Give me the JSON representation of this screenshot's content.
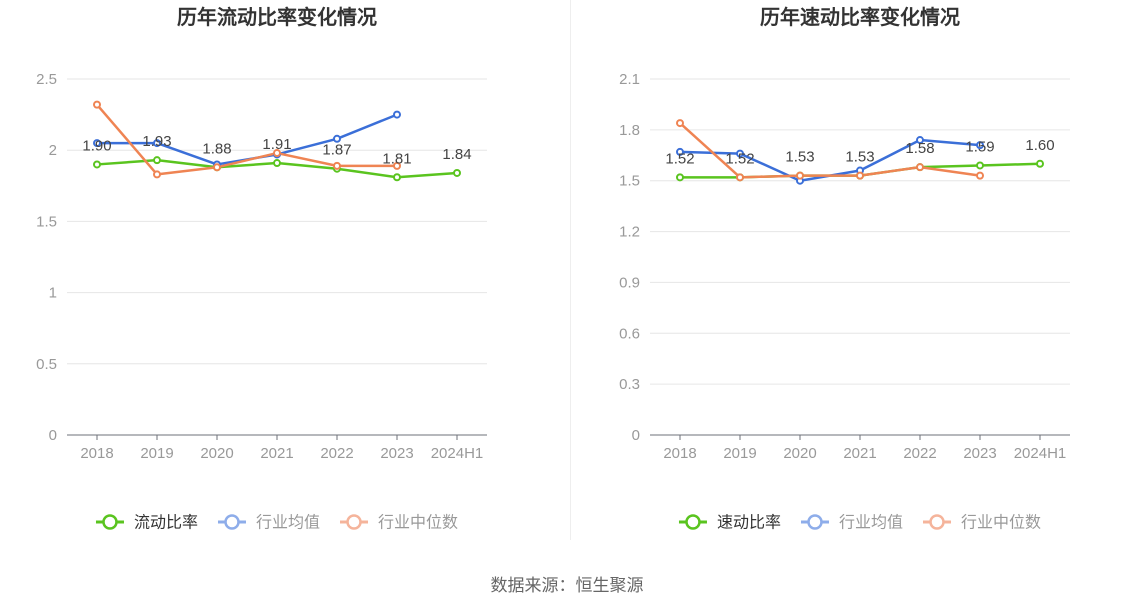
{
  "footer": {
    "source": "数据来源：恒生聚源"
  },
  "chart_data": [
    {
      "type": "line",
      "title": "历年流动比率变化情况",
      "categories": [
        "2018",
        "2019",
        "2020",
        "2021",
        "2022",
        "2023",
        "2024H1"
      ],
      "ylim": [
        0,
        2.5
      ],
      "yticks": [
        "0",
        "0.5",
        "1",
        "1.5",
        "2",
        "2.5"
      ],
      "grid": true,
      "legend": "bottom",
      "series": [
        {
          "name": "流动比率",
          "color": "#5ac41f",
          "legend_color": "#5ac41f",
          "values": [
            1.9,
            1.93,
            1.88,
            1.91,
            1.87,
            1.81,
            1.84
          ],
          "data_labels": [
            "1.90",
            "1.93",
            "1.88",
            "1.91",
            "1.87",
            "1.81",
            "1.84"
          ]
        },
        {
          "name": "行业均值",
          "color": "#3b6fd8",
          "legend_color": "#8eadea",
          "values": [
            2.05,
            2.05,
            1.9,
            1.97,
            2.08,
            2.25,
            null
          ]
        },
        {
          "name": "行业中位数",
          "color": "#ef8453",
          "legend_color": "#f5b49b",
          "values": [
            2.32,
            1.83,
            1.88,
            1.98,
            1.89,
            1.89,
            null
          ]
        }
      ]
    },
    {
      "type": "line",
      "title": "历年速动比率变化情况",
      "categories": [
        "2018",
        "2019",
        "2020",
        "2021",
        "2022",
        "2023",
        "2024H1"
      ],
      "ylim": [
        0,
        2.1
      ],
      "yticks": [
        "0",
        "0.3",
        "0.6",
        "0.9",
        "1.2",
        "1.5",
        "1.8",
        "2.1"
      ],
      "grid": true,
      "legend": "bottom",
      "series": [
        {
          "name": "速动比率",
          "color": "#5ac41f",
          "legend_color": "#5ac41f",
          "values": [
            1.52,
            1.52,
            1.53,
            1.53,
            1.58,
            1.59,
            1.6
          ],
          "data_labels": [
            "1.52",
            "1.52",
            "1.53",
            "1.53",
            "1.58",
            "1.59",
            "1.60"
          ]
        },
        {
          "name": "行业均值",
          "color": "#3b6fd8",
          "legend_color": "#8eadea",
          "values": [
            1.67,
            1.66,
            1.5,
            1.56,
            1.74,
            1.71,
            null
          ]
        },
        {
          "name": "行业中位数",
          "color": "#ef8453",
          "legend_color": "#f5b49b",
          "values": [
            1.84,
            1.52,
            1.53,
            1.53,
            1.58,
            1.53,
            null
          ]
        }
      ]
    }
  ]
}
